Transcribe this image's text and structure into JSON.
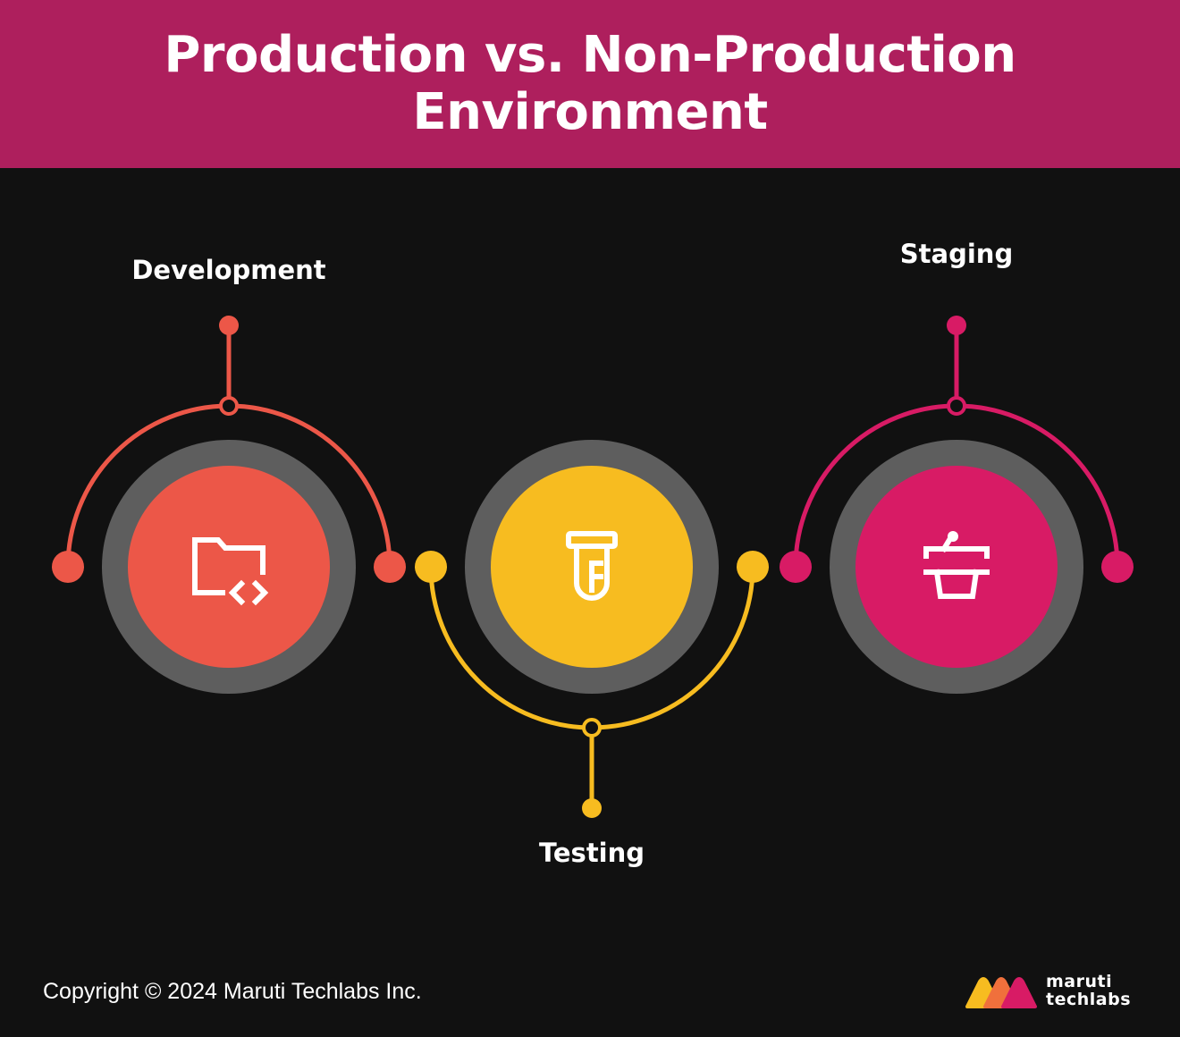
{
  "title": "Production vs. Non-Production Environment",
  "stages": [
    {
      "label": "Development",
      "icon": "folder-code-icon",
      "color": "#ec5748"
    },
    {
      "label": "Testing",
      "icon": "test-tube-icon",
      "color": "#f7bc20"
    },
    {
      "label": "Staging",
      "icon": "podium-icon",
      "color": "#d81b65"
    }
  ],
  "footer": {
    "copyright": "Copyright © 2024 Maruti Techlabs Inc.",
    "logo_line1": "maruti",
    "logo_line2": "techlabs"
  },
  "colors": {
    "header_bg": "#ae1f5d",
    "page_bg": "#111111",
    "ring": "#5e5e5e"
  }
}
